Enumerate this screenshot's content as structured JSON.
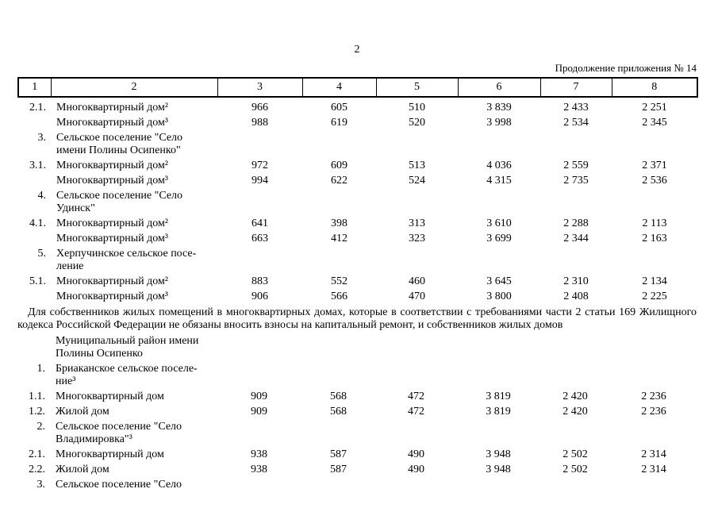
{
  "page": {
    "number": "2",
    "continuation": "Продолжение приложения № 14"
  },
  "table": {
    "header": [
      "1",
      "2",
      "3",
      "4",
      "5",
      "6",
      "7",
      "8"
    ]
  },
  "rows_upper": [
    {
      "num": "2.1.",
      "name": "Многоквартирный дом²",
      "values": [
        "966",
        "605",
        "510",
        "3 839",
        "2 433",
        "2 251"
      ]
    },
    {
      "num": "",
      "name": "Многоквартирный дом³",
      "values": [
        "988",
        "619",
        "520",
        "3 998",
        "2 534",
        "2 345"
      ]
    },
    {
      "num": "3.",
      "name": "Сельское поселение \"Село\nимени Полины Осипенко\"",
      "values": []
    },
    {
      "num": "3.1.",
      "name": "Многоквартирный дом²",
      "values": [
        "972",
        "609",
        "513",
        "4 036",
        "2 559",
        "2 371"
      ]
    },
    {
      "num": "",
      "name": "Многоквартирный дом³",
      "values": [
        "994",
        "622",
        "524",
        "4 315",
        "2 735",
        "2 536"
      ]
    },
    {
      "num": "4.",
      "name": "Сельское поселение \"Село\nУдинск\"",
      "values": []
    },
    {
      "num": "4.1.",
      "name": "Многоквартирный дом²",
      "values": [
        "641",
        "398",
        "313",
        "3 610",
        "2 288",
        "2 113"
      ]
    },
    {
      "num": "",
      "name": "Многоквартирный дом³",
      "values": [
        "663",
        "412",
        "323",
        "3 699",
        "2 344",
        "2 163"
      ]
    },
    {
      "num": "5.",
      "name": "Херпучинское сельское посе-\nление",
      "values": []
    },
    {
      "num": "5.1.",
      "name": "Многоквартирный дом²",
      "values": [
        "883",
        "552",
        "460",
        "3 645",
        "2 310",
        "2 134"
      ]
    },
    {
      "num": "",
      "name": "Многоквартирный дом³",
      "values": [
        "906",
        "566",
        "470",
        "3 800",
        "2 408",
        "2 225"
      ]
    }
  ],
  "note": "Для собственников жилых помещений в многоквартирных домах, которые в соответствии с требованиями части 2 статьи 169 Жилищного кодекса Российской Федерации не обязаны вносить взносы на капитальный ремонт, и собственников жилых домов",
  "rows_lower": [
    {
      "num": "",
      "name": "Муниципальный район имени\nПолины Осипенко",
      "values": []
    },
    {
      "num": "1.",
      "name": "Бриаканское сельское поселе-\nние³",
      "values": []
    },
    {
      "num": "1.1.",
      "name": "Многоквартирный дом",
      "values": [
        "909",
        "568",
        "472",
        "3 819",
        "2 420",
        "2 236"
      ]
    },
    {
      "num": "1.2.",
      "name": "Жилой дом",
      "values": [
        "909",
        "568",
        "472",
        "3 819",
        "2 420",
        "2 236"
      ]
    },
    {
      "num": "2.",
      "name": "Сельское поселение \"Село\nВладимировка\"³",
      "values": []
    },
    {
      "num": "2.1.",
      "name": "Многоквартирный дом",
      "values": [
        "938",
        "587",
        "490",
        "3 948",
        "2 502",
        "2 314"
      ]
    },
    {
      "num": "2.2.",
      "name": "Жилой дом",
      "values": [
        "938",
        "587",
        "490",
        "3 948",
        "2 502",
        "2 314"
      ]
    },
    {
      "num": "3.",
      "name": "Сельское поселение \"Село",
      "values": []
    }
  ]
}
